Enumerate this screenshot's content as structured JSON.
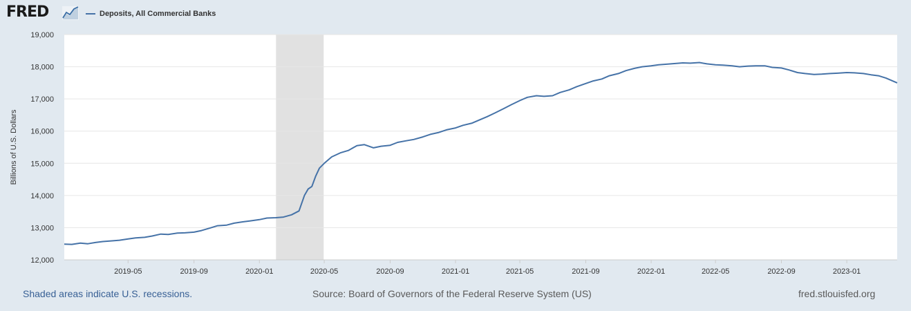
{
  "logo": {
    "text": "FRED"
  },
  "legend": {
    "label": "Deposits, All Commercial Banks",
    "color": "#4572a7"
  },
  "footer": {
    "note": "Shaded areas indicate U.S. recessions.",
    "source": "Source: Board of Governors of the Federal Reserve System (US)",
    "site": "fred.stlouisfed.org"
  },
  "chart_data": {
    "type": "line",
    "title": "",
    "xlabel": "",
    "ylabel": "Billions of U.S. Dollars",
    "x_range": [
      "2019-01-02",
      "2023-04-05"
    ],
    "ylim": [
      12000,
      19000
    ],
    "yticks": [
      12000,
      13000,
      14000,
      15000,
      16000,
      17000,
      18000,
      19000
    ],
    "ytick_labels": [
      "12,000",
      "13,000",
      "14,000",
      "15,000",
      "16,000",
      "17,000",
      "18,000",
      "19,000"
    ],
    "xticks": [
      "2019-05-01",
      "2019-09-01",
      "2020-01-01",
      "2020-05-01",
      "2020-09-01",
      "2021-01-01",
      "2021-05-01",
      "2021-09-01",
      "2022-01-01",
      "2022-05-01",
      "2022-09-01",
      "2023-01-01"
    ],
    "xtick_labels": [
      "2019-05",
      "2019-09",
      "2020-01",
      "2020-05",
      "2020-09",
      "2021-01",
      "2021-05",
      "2021-09",
      "2022-01",
      "2022-05",
      "2022-09",
      "2023-01"
    ],
    "grid": true,
    "recessions": [
      {
        "start": "2020-02-01",
        "end": "2020-04-30"
      }
    ],
    "series": [
      {
        "name": "Deposits, All Commercial Banks",
        "color": "#4572a7",
        "points": [
          [
            "2019-01-02",
            12490
          ],
          [
            "2019-01-16",
            12480
          ],
          [
            "2019-02-01",
            12520
          ],
          [
            "2019-02-15",
            12500
          ],
          [
            "2019-03-01",
            12540
          ],
          [
            "2019-03-15",
            12570
          ],
          [
            "2019-04-01",
            12590
          ],
          [
            "2019-04-15",
            12610
          ],
          [
            "2019-05-01",
            12650
          ],
          [
            "2019-05-15",
            12680
          ],
          [
            "2019-06-01",
            12700
          ],
          [
            "2019-06-15",
            12740
          ],
          [
            "2019-07-01",
            12800
          ],
          [
            "2019-07-15",
            12790
          ],
          [
            "2019-08-01",
            12830
          ],
          [
            "2019-08-15",
            12840
          ],
          [
            "2019-09-01",
            12860
          ],
          [
            "2019-09-15",
            12910
          ],
          [
            "2019-10-01",
            12990
          ],
          [
            "2019-10-15",
            13060
          ],
          [
            "2019-11-01",
            13080
          ],
          [
            "2019-11-15",
            13140
          ],
          [
            "2019-12-01",
            13180
          ],
          [
            "2019-12-15",
            13210
          ],
          [
            "2020-01-01",
            13250
          ],
          [
            "2020-01-15",
            13300
          ],
          [
            "2020-02-01",
            13310
          ],
          [
            "2020-02-15",
            13330
          ],
          [
            "2020-03-01",
            13400
          ],
          [
            "2020-03-15",
            13520
          ],
          [
            "2020-03-25",
            14000
          ],
          [
            "2020-04-01",
            14200
          ],
          [
            "2020-04-08",
            14280
          ],
          [
            "2020-04-15",
            14600
          ],
          [
            "2020-04-22",
            14850
          ],
          [
            "2020-05-01",
            15000
          ],
          [
            "2020-05-15",
            15200
          ],
          [
            "2020-06-01",
            15330
          ],
          [
            "2020-06-15",
            15400
          ],
          [
            "2020-07-01",
            15550
          ],
          [
            "2020-07-15",
            15580
          ],
          [
            "2020-08-01",
            15480
          ],
          [
            "2020-08-15",
            15530
          ],
          [
            "2020-09-01",
            15560
          ],
          [
            "2020-09-15",
            15650
          ],
          [
            "2020-10-01",
            15700
          ],
          [
            "2020-10-15",
            15740
          ],
          [
            "2020-11-01",
            15820
          ],
          [
            "2020-11-15",
            15900
          ],
          [
            "2020-12-01",
            15960
          ],
          [
            "2020-12-15",
            16040
          ],
          [
            "2021-01-01",
            16100
          ],
          [
            "2021-01-15",
            16180
          ],
          [
            "2021-02-01",
            16250
          ],
          [
            "2021-02-15",
            16350
          ],
          [
            "2021-03-01",
            16450
          ],
          [
            "2021-03-15",
            16560
          ],
          [
            "2021-04-01",
            16700
          ],
          [
            "2021-04-15",
            16820
          ],
          [
            "2021-05-01",
            16950
          ],
          [
            "2021-05-15",
            17050
          ],
          [
            "2021-06-01",
            17100
          ],
          [
            "2021-06-15",
            17080
          ],
          [
            "2021-07-01",
            17100
          ],
          [
            "2021-07-15",
            17200
          ],
          [
            "2021-08-01",
            17280
          ],
          [
            "2021-08-15",
            17380
          ],
          [
            "2021-09-01",
            17480
          ],
          [
            "2021-09-15",
            17560
          ],
          [
            "2021-10-01",
            17620
          ],
          [
            "2021-10-15",
            17720
          ],
          [
            "2021-11-01",
            17790
          ],
          [
            "2021-11-15",
            17880
          ],
          [
            "2021-12-01",
            17950
          ],
          [
            "2021-12-15",
            18000
          ],
          [
            "2022-01-01",
            18030
          ],
          [
            "2022-01-15",
            18060
          ],
          [
            "2022-02-01",
            18080
          ],
          [
            "2022-02-15",
            18100
          ],
          [
            "2022-03-01",
            18120
          ],
          [
            "2022-03-15",
            18110
          ],
          [
            "2022-04-01",
            18130
          ],
          [
            "2022-04-15",
            18090
          ],
          [
            "2022-05-01",
            18060
          ],
          [
            "2022-05-15",
            18050
          ],
          [
            "2022-06-01",
            18030
          ],
          [
            "2022-06-15",
            18000
          ],
          [
            "2022-07-01",
            18020
          ],
          [
            "2022-07-15",
            18030
          ],
          [
            "2022-08-01",
            18030
          ],
          [
            "2022-08-15",
            17980
          ],
          [
            "2022-09-01",
            17960
          ],
          [
            "2022-09-15",
            17900
          ],
          [
            "2022-10-01",
            17820
          ],
          [
            "2022-10-15",
            17790
          ],
          [
            "2022-11-01",
            17760
          ],
          [
            "2022-11-15",
            17770
          ],
          [
            "2022-12-01",
            17790
          ],
          [
            "2022-12-15",
            17800
          ],
          [
            "2023-01-01",
            17820
          ],
          [
            "2023-01-15",
            17810
          ],
          [
            "2023-02-01",
            17790
          ],
          [
            "2023-02-15",
            17750
          ],
          [
            "2023-03-01",
            17720
          ],
          [
            "2023-03-15",
            17650
          ],
          [
            "2023-04-05",
            17500
          ]
        ]
      }
    ]
  }
}
